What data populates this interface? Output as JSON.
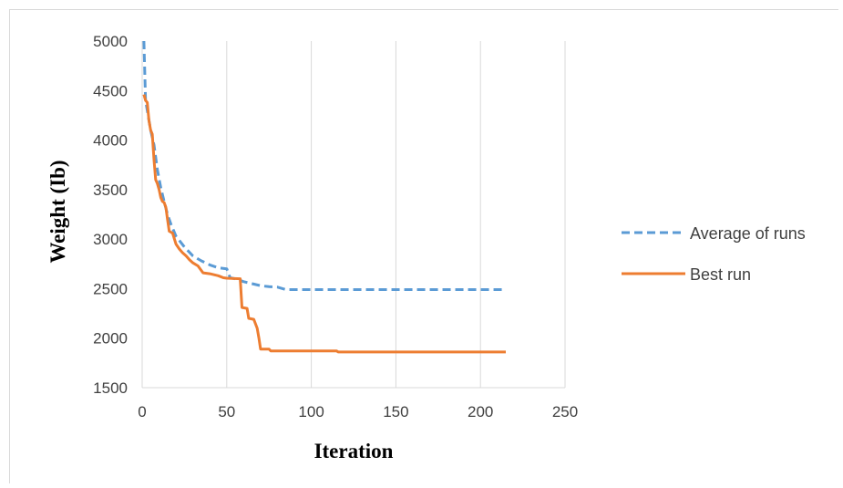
{
  "chart_data": {
    "type": "line",
    "title": "",
    "xlabel": "Iteration",
    "ylabel": "Weight (Ib)",
    "xlim": [
      0,
      250
    ],
    "ylim": [
      1500,
      5000
    ],
    "xticks": [
      0,
      50,
      100,
      150,
      200,
      250
    ],
    "yticks": [
      1500,
      2000,
      2500,
      3000,
      3500,
      4000,
      4500,
      5000
    ],
    "grid": "vertical",
    "legend_position": "right",
    "series": [
      {
        "name": "Average of runs",
        "color": "#5b9bd5",
        "dash": "dashed",
        "points": [
          [
            1,
            5000
          ],
          [
            2,
            4400
          ],
          [
            3,
            4300
          ],
          [
            5,
            4100
          ],
          [
            7,
            3950
          ],
          [
            9,
            3700
          ],
          [
            11,
            3520
          ],
          [
            13,
            3380
          ],
          [
            15,
            3250
          ],
          [
            17,
            3150
          ],
          [
            20,
            3030
          ],
          [
            25,
            2920
          ],
          [
            30,
            2830
          ],
          [
            35,
            2780
          ],
          [
            40,
            2740
          ],
          [
            45,
            2710
          ],
          [
            50,
            2700
          ],
          [
            52,
            2610
          ],
          [
            55,
            2600
          ],
          [
            60,
            2570
          ],
          [
            65,
            2550
          ],
          [
            70,
            2530
          ],
          [
            75,
            2520
          ],
          [
            80,
            2515
          ],
          [
            85,
            2490
          ],
          [
            100,
            2490
          ],
          [
            150,
            2490
          ],
          [
            215,
            2490
          ]
        ]
      },
      {
        "name": "Best run",
        "color": "#ed7d31",
        "dash": "solid",
        "points": [
          [
            1,
            4460
          ],
          [
            2,
            4400
          ],
          [
            3,
            4380
          ],
          [
            4,
            4200
          ],
          [
            5,
            4100
          ],
          [
            6,
            4060
          ],
          [
            7,
            3800
          ],
          [
            8,
            3600
          ],
          [
            9,
            3560
          ],
          [
            10,
            3500
          ],
          [
            11,
            3420
          ],
          [
            12,
            3380
          ],
          [
            13,
            3370
          ],
          [
            14,
            3320
          ],
          [
            15,
            3200
          ],
          [
            16,
            3080
          ],
          [
            18,
            3060
          ],
          [
            20,
            2950
          ],
          [
            22,
            2900
          ],
          [
            24,
            2860
          ],
          [
            26,
            2830
          ],
          [
            28,
            2790
          ],
          [
            30,
            2760
          ],
          [
            33,
            2730
          ],
          [
            36,
            2660
          ],
          [
            40,
            2650
          ],
          [
            45,
            2630
          ],
          [
            48,
            2610
          ],
          [
            50,
            2605
          ],
          [
            58,
            2600
          ],
          [
            59,
            2310
          ],
          [
            62,
            2300
          ],
          [
            63,
            2200
          ],
          [
            66,
            2190
          ],
          [
            68,
            2100
          ],
          [
            69,
            2000
          ],
          [
            70,
            1890
          ],
          [
            75,
            1890
          ],
          [
            76,
            1870
          ],
          [
            115,
            1870
          ],
          [
            116,
            1860
          ],
          [
            215,
            1860
          ]
        ]
      }
    ]
  }
}
